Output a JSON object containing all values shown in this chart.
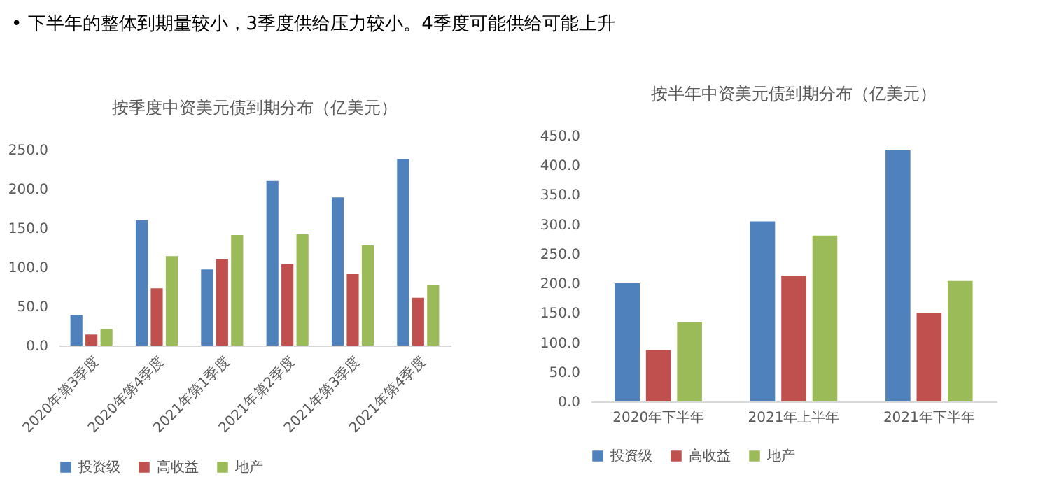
{
  "chart_data": [
    {
      "type": "bar",
      "title": "按季度中资美元债到期分布（亿美元）",
      "annotations": [
        "•  下半年的整体到期量较小，3季度供给压力较小。4季度可能供给可能上升"
      ],
      "categories": [
        "2020年第3季度",
        "2020年第4季度",
        "2021年第1季度",
        "2021年第2季度",
        "2021年第3季度",
        "2021年第4季度"
      ],
      "series": [
        {
          "name": "投资级",
          "color": "#4f81bd",
          "values": [
            39,
            160,
            97,
            210,
            189,
            238
          ]
        },
        {
          "name": "高收益",
          "color": "#c0504d",
          "values": [
            14,
            73,
            110,
            104,
            91,
            61
          ]
        },
        {
          "name": "地产",
          "color": "#9bbb59",
          "values": [
            21,
            114,
            141,
            142,
            128,
            77
          ]
        }
      ],
      "ylim": [
        0,
        250
      ],
      "yticks": [
        {
          "value": 0,
          "label": "0.0"
        },
        {
          "value": 50,
          "label": "50.0"
        },
        {
          "value": 100,
          "label": "100.0"
        },
        {
          "value": 150,
          "label": "150.0"
        },
        {
          "value": 200,
          "label": "200.0"
        },
        {
          "value": 250,
          "label": "250.0"
        }
      ],
      "grid": false,
      "legend": "bottom"
    },
    {
      "type": "bar",
      "title": "按半年中资美元债到期分布（亿美元）",
      "categories": [
        "2020年下半年",
        "2021年上半年",
        "2021年下半年"
      ],
      "series": [
        {
          "name": "投资级",
          "color": "#4f81bd",
          "values": [
            200,
            305,
            425
          ]
        },
        {
          "name": "高收益",
          "color": "#c0504d",
          "values": [
            87,
            213,
            150
          ]
        },
        {
          "name": "地产",
          "color": "#9bbb59",
          "values": [
            134,
            281,
            204
          ]
        }
      ],
      "ylim": [
        0,
        450
      ],
      "yticks": [
        {
          "value": 0,
          "label": "0.0"
        },
        {
          "value": 50,
          "label": "50.0"
        },
        {
          "value": 100,
          "label": "100.0"
        },
        {
          "value": 150,
          "label": "150.0"
        },
        {
          "value": 200,
          "label": "200.0"
        },
        {
          "value": 250,
          "label": "250.0"
        },
        {
          "value": 300,
          "label": "300.0"
        },
        {
          "value": 350,
          "label": "350.0"
        },
        {
          "value": 400,
          "label": "400.0"
        },
        {
          "value": 450,
          "label": "450.0"
        }
      ],
      "grid": false,
      "legend": "bottom"
    }
  ]
}
